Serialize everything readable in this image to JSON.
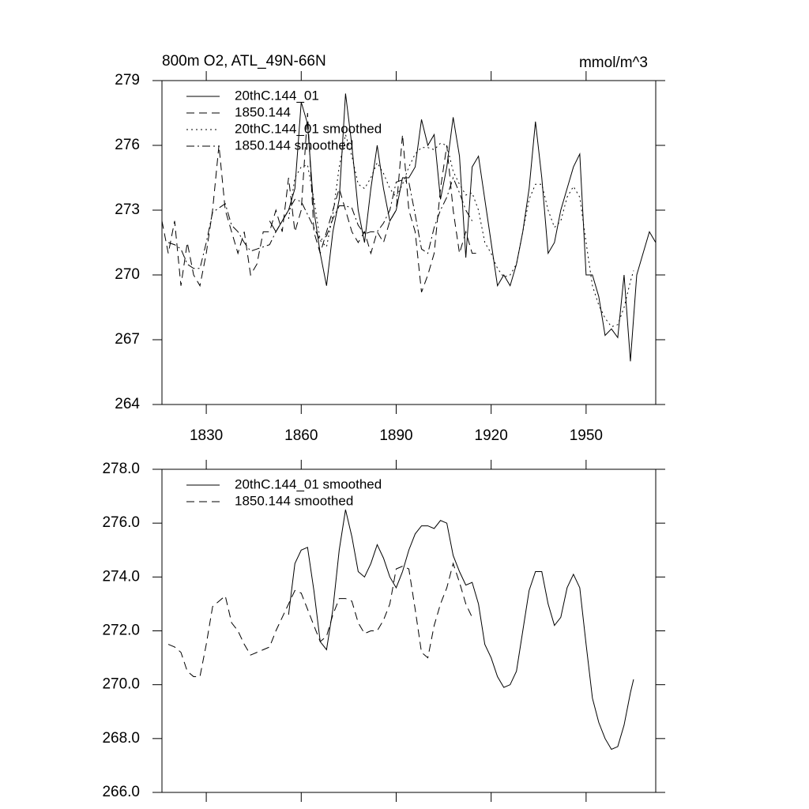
{
  "chart_data": [
    {
      "type": "line",
      "title": "800m O2, ATL_49N-66N",
      "units": "mmol/m^3",
      "xlim": [
        1816,
        1972
      ],
      "xticks": [
        1830,
        1860,
        1890,
        1920,
        1950
      ],
      "show_xtick_labels": true,
      "ylim": [
        264,
        279
      ],
      "yticks": [
        264,
        267,
        270,
        273,
        276,
        279
      ],
      "legend": "upper left",
      "series": [
        {
          "name": "20thC.144_01",
          "color": "#000000",
          "linestyle": "solid",
          "x": [
            1850,
            1852,
            1854,
            1856,
            1858,
            1860,
            1862,
            1864,
            1866,
            1868,
            1870,
            1872,
            1874,
            1876,
            1878,
            1880,
            1882,
            1884,
            1886,
            1888,
            1890,
            1892,
            1894,
            1896,
            1898,
            1900,
            1902,
            1904,
            1906,
            1908,
            1910,
            1912,
            1914,
            1916,
            1918,
            1920,
            1922,
            1924,
            1926,
            1928,
            1930,
            1932,
            1934,
            1936,
            1938,
            1940,
            1942,
            1944,
            1946,
            1948,
            1950,
            1952,
            1954,
            1956,
            1958,
            1960,
            1962,
            1964,
            1966,
            1968,
            1970,
            1972
          ],
          "values": [
            272.5,
            272,
            272.5,
            273,
            274,
            278,
            277,
            273,
            271,
            269.5,
            272,
            273.5,
            278.4,
            276,
            273,
            271.5,
            274,
            276,
            274,
            272.5,
            273,
            274.5,
            274.5,
            275,
            277.2,
            276,
            276.5,
            273.5,
            275,
            277.3,
            275.5,
            270.8,
            275,
            275.5,
            273.5,
            271.5,
            269.5,
            270,
            269.5,
            270.5,
            272,
            274,
            277.1,
            274.5,
            271,
            271.5,
            273,
            274,
            275,
            275.6,
            270,
            270,
            269,
            267.2,
            267.5,
            267.1,
            270,
            266,
            270,
            271,
            272,
            271.5
          ]
        },
        {
          "name": "1850.144",
          "color": "#000000",
          "linestyle": "dashed",
          "x": [
            1816,
            1818,
            1820,
            1822,
            1824,
            1826,
            1828,
            1830,
            1832,
            1834,
            1836,
            1838,
            1840,
            1842,
            1844,
            1846,
            1848,
            1850,
            1852,
            1854,
            1856,
            1858,
            1860,
            1862,
            1864,
            1866,
            1868,
            1870,
            1872,
            1874,
            1876,
            1878,
            1880,
            1882,
            1884,
            1886,
            1888,
            1890,
            1892,
            1894,
            1896,
            1898,
            1900,
            1902,
            1904,
            1906,
            1908,
            1910,
            1912,
            1914,
            1916
          ],
          "values": [
            272.5,
            271,
            272.5,
            269.5,
            271.5,
            270,
            269.5,
            271,
            273,
            276,
            273,
            272,
            271,
            272,
            270,
            270.5,
            272,
            272,
            273,
            272,
            274.5,
            272,
            273,
            277.5,
            272,
            271,
            272,
            273,
            274,
            273,
            272,
            271.5,
            272,
            271,
            272,
            271.5,
            272.5,
            273,
            276.5,
            273,
            272,
            269.2,
            270,
            271,
            274,
            276,
            273,
            271,
            272,
            271,
            271
          ]
        },
        {
          "name": "20thC.144_01 smoothed",
          "color": "#000000",
          "linestyle": "dotted",
          "x": [
            1856,
            1858,
            1860,
            1862,
            1864,
            1866,
            1868,
            1870,
            1872,
            1874,
            1876,
            1878,
            1880,
            1882,
            1884,
            1886,
            1888,
            1890,
            1892,
            1894,
            1896,
            1898,
            1900,
            1902,
            1904,
            1906,
            1908,
            1910,
            1912,
            1914,
            1916,
            1918,
            1920,
            1922,
            1924,
            1926,
            1928,
            1930,
            1932,
            1934,
            1936,
            1938,
            1940,
            1942,
            1944,
            1946,
            1948,
            1950,
            1952,
            1954,
            1956,
            1958,
            1960,
            1962,
            1964,
            1965
          ],
          "values": [
            272.6,
            274.5,
            275,
            275.1,
            273.5,
            271.6,
            271.3,
            272.8,
            275,
            276.5,
            275.5,
            274.2,
            274,
            274.5,
            275.2,
            274.7,
            274,
            273.6,
            274.2,
            275,
            275.6,
            275.9,
            275.9,
            275.8,
            276.1,
            276,
            274.8,
            274.2,
            273.7,
            273.8,
            273,
            271.5,
            271,
            270.3,
            269.9,
            270,
            270.5,
            272,
            273.5,
            274.2,
            274.2,
            273,
            272.2,
            272.5,
            273.6,
            274.1,
            273.6,
            271.5,
            269.5,
            268.6,
            268,
            267.6,
            267.7,
            268.5,
            269.7,
            270.2
          ]
        },
        {
          "name": "1850.144 smoothed",
          "color": "#000000",
          "linestyle": "dashdot",
          "x": [
            1818,
            1820,
            1822,
            1824,
            1826,
            1828,
            1830,
            1832,
            1834,
            1836,
            1838,
            1840,
            1842,
            1844,
            1846,
            1848,
            1850,
            1852,
            1854,
            1856,
            1858,
            1860,
            1862,
            1864,
            1866,
            1868,
            1870,
            1872,
            1874,
            1876,
            1878,
            1880,
            1882,
            1884,
            1886,
            1888,
            1890,
            1892,
            1894,
            1896,
            1898,
            1900,
            1902,
            1904,
            1906,
            1908,
            1910,
            1912,
            1914
          ],
          "values": [
            271.5,
            271.4,
            271.2,
            270.5,
            270.3,
            270.3,
            271.5,
            272.9,
            273.1,
            273.3,
            272.3,
            272,
            271.5,
            271.1,
            271.2,
            271.3,
            271.4,
            272,
            272.5,
            273,
            273.5,
            273.4,
            272.8,
            272.2,
            271.6,
            271.8,
            272.6,
            273.2,
            273.2,
            273.1,
            272.3,
            271.9,
            272,
            272,
            272.4,
            273,
            274.3,
            274.4,
            274.3,
            272.8,
            271.2,
            271,
            272.2,
            273,
            273.6,
            274.5,
            273.8,
            273,
            272.5
          ]
        }
      ]
    },
    {
      "type": "line",
      "xlim": [
        1816,
        1972
      ],
      "xticks": [
        1830,
        1860,
        1890,
        1920,
        1950
      ],
      "show_xtick_labels": false,
      "ylim": [
        266,
        278
      ],
      "yticks": [
        {
          "value": 266,
          "label": "266.0"
        },
        {
          "value": 268,
          "label": "268.0"
        },
        {
          "value": 270,
          "label": "270.0"
        },
        {
          "value": 272,
          "label": "272.0"
        },
        {
          "value": 274,
          "label": "274.0"
        },
        {
          "value": 276,
          "label": "276.0"
        },
        {
          "value": 278,
          "label": "278.0"
        }
      ],
      "legend": "upper left",
      "series": [
        {
          "name": "20thC.144_01 smoothed",
          "color": "#000000",
          "linestyle": "solid",
          "x": [
            1856,
            1858,
            1860,
            1862,
            1864,
            1866,
            1868,
            1870,
            1872,
            1874,
            1876,
            1878,
            1880,
            1882,
            1884,
            1886,
            1888,
            1890,
            1892,
            1894,
            1896,
            1898,
            1900,
            1902,
            1904,
            1906,
            1908,
            1910,
            1912,
            1914,
            1916,
            1918,
            1920,
            1922,
            1924,
            1926,
            1928,
            1930,
            1932,
            1934,
            1936,
            1938,
            1940,
            1942,
            1944,
            1946,
            1948,
            1950,
            1952,
            1954,
            1956,
            1958,
            1960,
            1962,
            1964,
            1965
          ],
          "values": [
            272.6,
            274.5,
            275,
            275.1,
            273.5,
            271.6,
            271.3,
            272.8,
            275,
            276.5,
            275.5,
            274.2,
            274,
            274.5,
            275.2,
            274.7,
            274,
            273.6,
            274.2,
            275,
            275.6,
            275.9,
            275.9,
            275.8,
            276.1,
            276,
            274.8,
            274.2,
            273.7,
            273.8,
            273,
            271.5,
            271,
            270.3,
            269.9,
            270,
            270.5,
            272,
            273.5,
            274.2,
            274.2,
            273,
            272.2,
            272.5,
            273.6,
            274.1,
            273.6,
            271.5,
            269.5,
            268.6,
            268,
            267.6,
            267.7,
            268.5,
            269.7,
            270.2
          ]
        },
        {
          "name": "1850.144 smoothed",
          "color": "#000000",
          "linestyle": "dashed",
          "x": [
            1818,
            1820,
            1822,
            1824,
            1826,
            1828,
            1830,
            1832,
            1834,
            1836,
            1838,
            1840,
            1842,
            1844,
            1846,
            1848,
            1850,
            1852,
            1854,
            1856,
            1858,
            1860,
            1862,
            1864,
            1866,
            1868,
            1870,
            1872,
            1874,
            1876,
            1878,
            1880,
            1882,
            1884,
            1886,
            1888,
            1890,
            1892,
            1894,
            1896,
            1898,
            1900,
            1902,
            1904,
            1906,
            1908,
            1910,
            1912,
            1914
          ],
          "values": [
            271.5,
            271.4,
            271.2,
            270.5,
            270.3,
            270.3,
            271.5,
            272.9,
            273.1,
            273.3,
            272.3,
            272,
            271.5,
            271.1,
            271.2,
            271.3,
            271.4,
            272,
            272.5,
            273,
            273.5,
            273.4,
            272.8,
            272.2,
            271.6,
            271.8,
            272.6,
            273.2,
            273.2,
            273.1,
            272.3,
            271.9,
            272,
            272,
            272.4,
            273,
            274.3,
            274.4,
            274.3,
            272.8,
            271.2,
            271,
            272.2,
            273,
            273.6,
            274.5,
            273.8,
            273,
            272.5
          ]
        }
      ]
    }
  ]
}
